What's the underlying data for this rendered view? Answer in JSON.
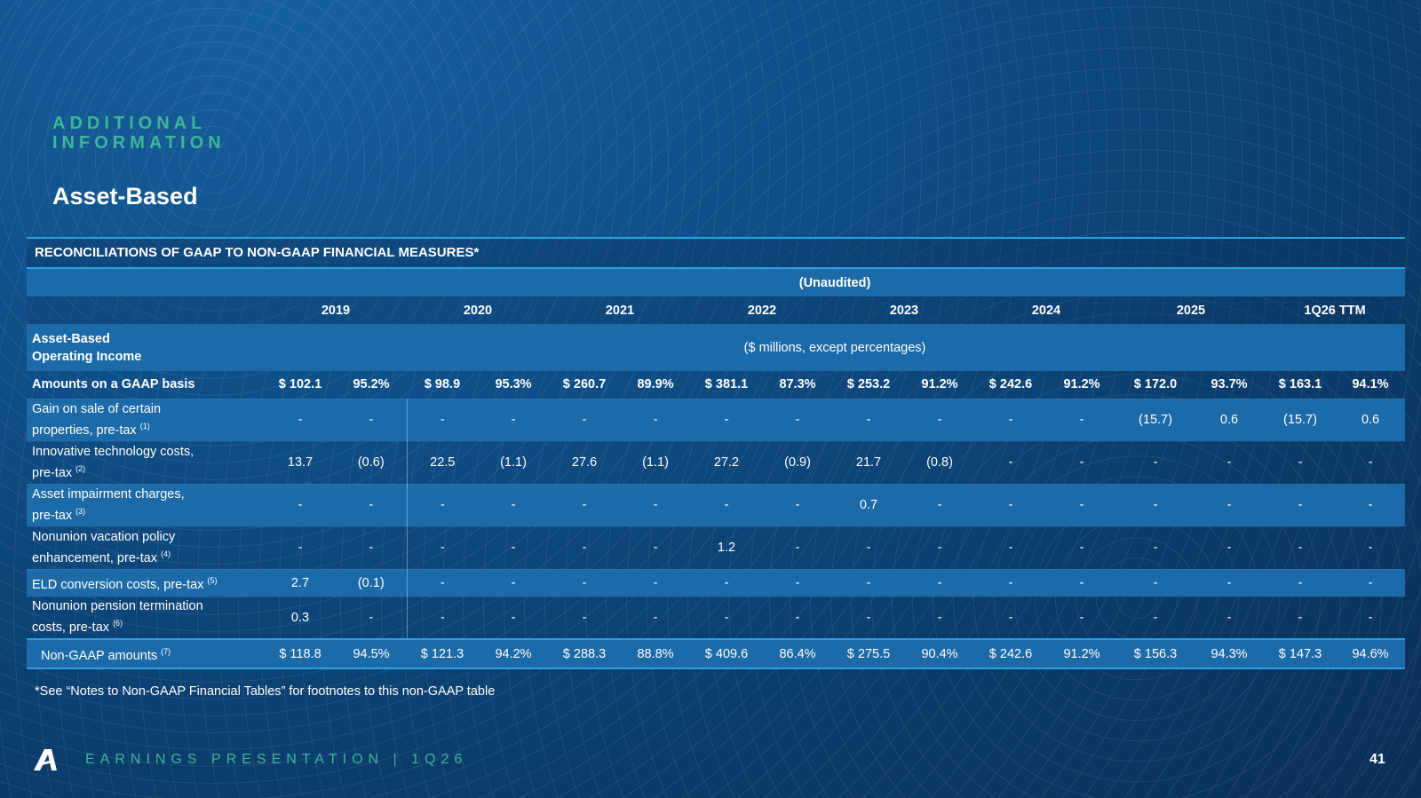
{
  "section_label": [
    "ADDITIONAL",
    "INFORMATION"
  ],
  "page_title": "Asset-Based",
  "table_title": "RECONCILIATIONS OF GAAP TO NON-GAAP FINANCIAL MEASURES*",
  "unaudited": "(Unaudited)",
  "years": [
    "2019",
    "2020",
    "2021",
    "2022",
    "2023",
    "2024",
    "2025",
    "1Q26 TTM"
  ],
  "caption_label": [
    "Asset-Based",
    "Operating Income"
  ],
  "caption": "($ millions, except percentages)",
  "gaap_row": {
    "label": "Amounts on a GAAP basis",
    "values": [
      "$ 102.1",
      "95.2%",
      "$ 98.9",
      "95.3%",
      "$ 260.7",
      "89.9%",
      "$ 381.1",
      "87.3%",
      "$ 253.2",
      "91.2%",
      "$ 242.6",
      "91.2%",
      "$ 172.0",
      "93.7%",
      "$ 163.1",
      "94.1%"
    ]
  },
  "rows": [
    {
      "label": [
        "Gain on sale of certain",
        "properties, pre-tax"
      ],
      "note": "(1)",
      "values": [
        "-",
        "-",
        "-",
        "-",
        "-",
        "-",
        "-",
        "-",
        "-",
        "-",
        "-",
        "-",
        "(15.7)",
        "0.6",
        "(15.7)",
        "0.6"
      ]
    },
    {
      "label": [
        "Innovative technology costs,",
        "pre-tax"
      ],
      "note": "(2)",
      "values": [
        "13.7",
        "(0.6)",
        "22.5",
        "(1.1)",
        "27.6",
        "(1.1)",
        "27.2",
        "(0.9)",
        "21.7",
        "(0.8)",
        "-",
        "-",
        "-",
        "-",
        "-",
        "-"
      ]
    },
    {
      "label": [
        "Asset impairment charges,",
        "pre-tax"
      ],
      "note": "(3)",
      "values": [
        "-",
        "-",
        "-",
        "-",
        "-",
        "-",
        "-",
        "-",
        "0.7",
        "-",
        "-",
        "-",
        "-",
        "-",
        "-",
        "-"
      ]
    },
    {
      "label": [
        "Nonunion vacation policy",
        "enhancement, pre-tax"
      ],
      "note": "(4)",
      "values": [
        "-",
        "-",
        "-",
        "-",
        "-",
        "-",
        "1.2",
        "-",
        "-",
        "-",
        "-",
        "-",
        "-",
        "-",
        "-",
        "-"
      ]
    },
    {
      "label": [
        "ELD conversion costs, pre-tax"
      ],
      "note": "(5)",
      "values": [
        "2.7",
        "(0.1)",
        "-",
        "-",
        "-",
        "-",
        "-",
        "-",
        "-",
        "-",
        "-",
        "-",
        "-",
        "-",
        "-",
        "-"
      ]
    },
    {
      "label": [
        "Nonunion pension termination",
        "costs, pre-tax"
      ],
      "note": "(6)",
      "values": [
        "0.3",
        "-",
        "-",
        "-",
        "-",
        "-",
        "-",
        "-",
        "-",
        "-",
        "-",
        "-",
        "-",
        "-",
        "-",
        "-"
      ]
    }
  ],
  "final_row": {
    "label": "Non-GAAP amounts",
    "note": "(7)",
    "values": [
      "$ 118.8",
      "94.5%",
      "$ 121.3",
      "94.2%",
      "$ 288.3",
      "88.8%",
      "$ 409.6",
      "86.4%",
      "$ 275.5",
      "90.4%",
      "$ 242.6",
      "91.2%",
      "$ 156.3",
      "94.3%",
      "$ 147.3",
      "94.6%"
    ]
  },
  "footnote": "*See “Notes to Non-GAAP Financial Tables” for footnotes to this non-GAAP table",
  "footer": {
    "text": "EARNINGS PRESENTATION  |  1Q26",
    "page_number": "41",
    "logo_icon": "arcbest-a-logo-icon"
  }
}
